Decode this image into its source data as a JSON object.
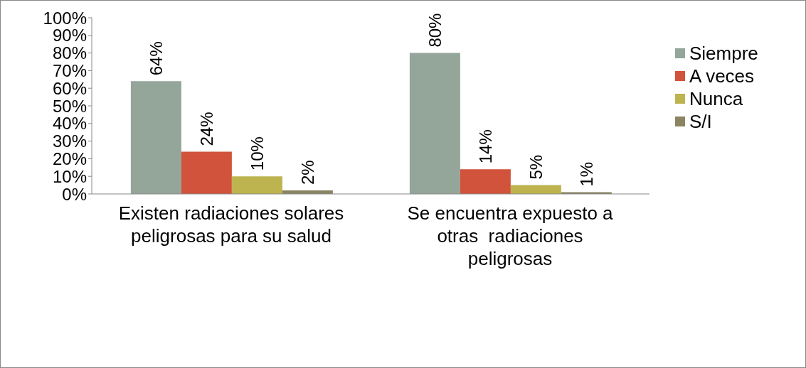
{
  "chart_data": {
    "type": "bar",
    "categories": [
      "Existen radiaciones solares peligrosas para su salud",
      "Se encuentra expuesto a otras  radiaciones peligrosas"
    ],
    "series": [
      {
        "name": "Siempre",
        "color": "#94a59a",
        "values": [
          64,
          80
        ],
        "value_labels": [
          "64%",
          "80%"
        ]
      },
      {
        "name": "A veces",
        "color": "#d1533b",
        "values": [
          24,
          14
        ],
        "value_labels": [
          "24%",
          "14%"
        ]
      },
      {
        "name": "Nunca",
        "color": "#bdb44f",
        "values": [
          10,
          5
        ],
        "value_labels": [
          "10%",
          "5%"
        ]
      },
      {
        "name": "S/I",
        "color": "#8a8462",
        "values": [
          2,
          1
        ],
        "value_labels": [
          "2%",
          "1%"
        ]
      }
    ],
    "ylim": [
      0,
      100
    ],
    "yticks": [
      {
        "value": 0,
        "label": "0%"
      },
      {
        "value": 10,
        "label": "10%"
      },
      {
        "value": 20,
        "label": "20%"
      },
      {
        "value": 30,
        "label": "30%"
      },
      {
        "value": 40,
        "label": "40%"
      },
      {
        "value": 50,
        "label": "50%"
      },
      {
        "value": 60,
        "label": "60%"
      },
      {
        "value": 70,
        "label": "70%"
      },
      {
        "value": 80,
        "label": "80%"
      },
      {
        "value": 90,
        "label": "90%"
      },
      {
        "value": 100,
        "label": "100%"
      }
    ],
    "legend": "right"
  }
}
